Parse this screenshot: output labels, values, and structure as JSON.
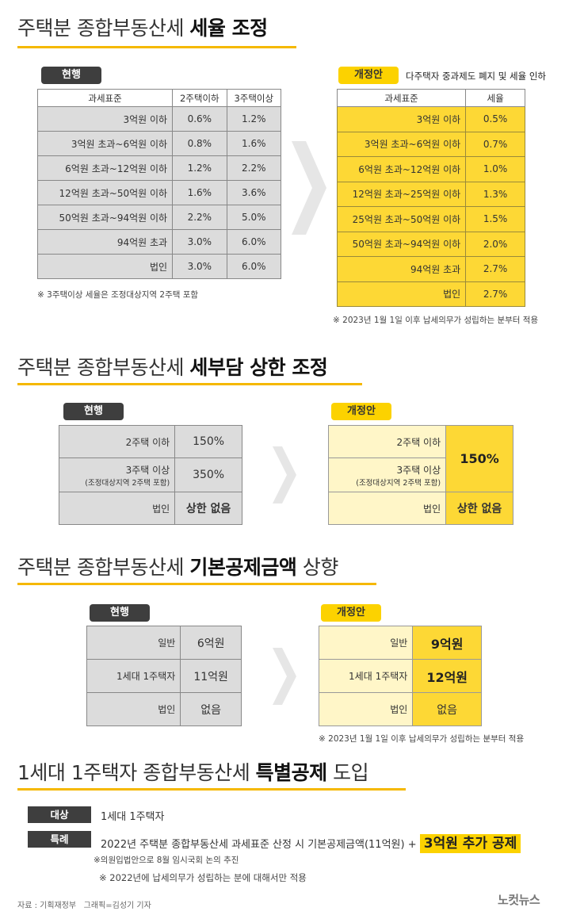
{
  "s1": {
    "title_pre": "주택분 종합부동산세 ",
    "title_bold": "세율 조정",
    "cur_tag": "현행",
    "cur_headers": [
      "과세표준",
      "2주택이하",
      "3주택이상"
    ],
    "cur_rows": [
      [
        "3억원 이하",
        "0.6%",
        "1.2%"
      ],
      [
        "3억원 초과~6억원 이하",
        "0.8%",
        "1.6%"
      ],
      [
        "6억원 초과~12억원 이하",
        "1.2%",
        "2.2%"
      ],
      [
        "12억원 초과~50억원 이하",
        "1.6%",
        "3.6%"
      ],
      [
        "50억원 초과~94억원 이하",
        "2.2%",
        "5.0%"
      ],
      [
        "94억원 초과",
        "3.0%",
        "6.0%"
      ],
      [
        "법인",
        "3.0%",
        "6.0%"
      ]
    ],
    "cur_note": "※ 3주택이상 세율은 조정대상지역 2주택 포함",
    "new_tag": "개정안",
    "new_desc": "다주택자 중과제도 폐지 및 세율 인하",
    "new_headers": [
      "과세표준",
      "세율"
    ],
    "new_rows": [
      [
        "3억원 이하",
        "0.5%"
      ],
      [
        "3억원 초과~6억원 이하",
        "0.7%"
      ],
      [
        "6억원 초과~12억원 이하",
        "1.0%"
      ],
      [
        "12억원 초과~25억원 이하",
        "1.3%"
      ],
      [
        "25억원 초과~50억원 이하",
        "1.5%"
      ],
      [
        "50억원 초과~94억원 이하",
        "2.0%"
      ],
      [
        "94억원 초과",
        "2.7%"
      ],
      [
        "법인",
        "2.7%"
      ]
    ],
    "new_note": "※ 2023년 1월 1일 이후 납세의무가 성립하는 분부터 적용"
  },
  "s2": {
    "title_pre": "주택분 종합부동산세 ",
    "title_bold": "세부담 상한 조정",
    "cur_tag": "현행",
    "row1_label": "2주택 이하",
    "row1_value": "150%",
    "row2_label": "3주택 이상",
    "row2_sub": "(조정대상지역 2주택 포함)",
    "row2_value": "350%",
    "row3_label": "법인",
    "row3_value": "상한 없음",
    "new_tag": "개정안",
    "new_row1_label": "2주택 이하",
    "new_row2_label": "3주택 이상",
    "new_row2_sub": "(조정대상지역 2주택 포함)",
    "new_merged_value": "150%",
    "new_row3_label": "법인",
    "new_row3_value": "상한 없음"
  },
  "s3": {
    "title_pre": "주택분 종합부동산세 ",
    "title_bold": "기본공제금액",
    "title_post": " 상향",
    "cur_tag": "현행",
    "cur_rows": [
      [
        "일반",
        "6억원"
      ],
      [
        "1세대 1주택자",
        "11억원"
      ],
      [
        "법인",
        "없음"
      ]
    ],
    "new_tag": "개정안",
    "new_rows": [
      [
        "일반",
        "9억원"
      ],
      [
        "1세대 1주택자",
        "12억원"
      ],
      [
        "법인",
        "없음"
      ]
    ],
    "note": "※ 2023년 1월 1일 이후 납세의무가 성립하는 분부터 적용"
  },
  "s4": {
    "title_pre": "1세대 1주택자 종합부동산세 ",
    "title_bold": "특별공제",
    "title_post": " 도입",
    "target_label": "대상",
    "target_text": "1세대 1주택자",
    "special_label": "특례",
    "special_text": "2022년 주택분 종합부동산세 과세표준 산정 시 기본공제금액(11억원) +",
    "special_highlight": "3억원 추가 공제",
    "note1": "※의원입법안으로 8월 임시국회 논의 추진",
    "note2": "※ 2022년에 납세의무가 성립하는 분에 대해서만 적용"
  },
  "footer": {
    "source": "자료 : 기획재정부   그래픽=김성기 기자",
    "logo": "노컷뉴스"
  },
  "colors": {
    "accent": "#fcd200",
    "underline": "#f5b800",
    "tag_dark": "#3e3e3e",
    "grey_cell": "#dcdcdc"
  }
}
